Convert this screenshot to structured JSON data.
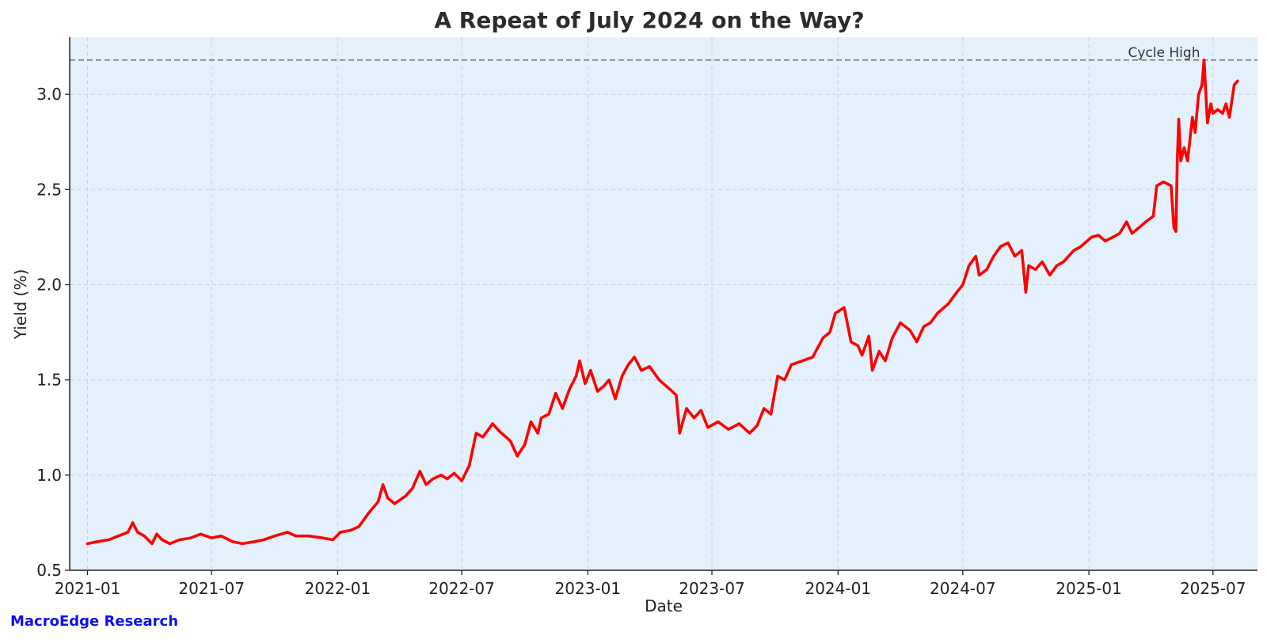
{
  "chart_data": {
    "type": "line",
    "title": "A Repeat of July 2024 on the Way?",
    "xlabel": "Date",
    "ylabel": "Yield (%)",
    "x_ticks": [
      "2021-01",
      "2021-07",
      "2022-01",
      "2022-07",
      "2023-01",
      "2023-07",
      "2024-01",
      "2024-07",
      "2025-01",
      "2025-07"
    ],
    "y_ticks": [
      "0.5",
      "1.0",
      "1.5",
      "2.0",
      "2.5",
      "3.0"
    ],
    "ylim": [
      0.5,
      3.3
    ],
    "xlim": [
      "2020-12-06",
      "2025-09-04"
    ],
    "grid": true,
    "background_color": "#e4f1fd",
    "series": [
      {
        "color": "#ff0000",
        "points": [
          [
            "2021-01-01",
            0.64
          ],
          [
            "2021-01-15",
            0.65
          ],
          [
            "2021-02-01",
            0.66
          ],
          [
            "2021-02-15",
            0.68
          ],
          [
            "2021-03-01",
            0.7
          ],
          [
            "2021-03-08",
            0.75
          ],
          [
            "2021-03-15",
            0.7
          ],
          [
            "2021-03-25",
            0.68
          ],
          [
            "2021-04-05",
            0.64
          ],
          [
            "2021-04-12",
            0.69
          ],
          [
            "2021-04-20",
            0.66
          ],
          [
            "2021-05-01",
            0.64
          ],
          [
            "2021-05-15",
            0.66
          ],
          [
            "2021-06-01",
            0.67
          ],
          [
            "2021-06-15",
            0.69
          ],
          [
            "2021-07-01",
            0.67
          ],
          [
            "2021-07-15",
            0.68
          ],
          [
            "2021-08-01",
            0.65
          ],
          [
            "2021-08-15",
            0.64
          ],
          [
            "2021-09-01",
            0.65
          ],
          [
            "2021-09-15",
            0.66
          ],
          [
            "2021-10-01",
            0.68
          ],
          [
            "2021-10-20",
            0.7
          ],
          [
            "2021-11-01",
            0.68
          ],
          [
            "2021-11-20",
            0.68
          ],
          [
            "2021-12-10",
            0.67
          ],
          [
            "2021-12-25",
            0.66
          ],
          [
            "2022-01-05",
            0.7
          ],
          [
            "2022-01-20",
            0.71
          ],
          [
            "2022-02-01",
            0.73
          ],
          [
            "2022-02-15",
            0.8
          ],
          [
            "2022-03-01",
            0.86
          ],
          [
            "2022-03-08",
            0.95
          ],
          [
            "2022-03-15",
            0.88
          ],
          [
            "2022-03-25",
            0.85
          ],
          [
            "2022-04-10",
            0.89
          ],
          [
            "2022-04-20",
            0.93
          ],
          [
            "2022-05-01",
            1.02
          ],
          [
            "2022-05-10",
            0.95
          ],
          [
            "2022-05-20",
            0.98
          ],
          [
            "2022-06-01",
            1.0
          ],
          [
            "2022-06-10",
            0.98
          ],
          [
            "2022-06-20",
            1.01
          ],
          [
            "2022-07-01",
            0.97
          ],
          [
            "2022-07-12",
            1.05
          ],
          [
            "2022-07-22",
            1.22
          ],
          [
            "2022-08-01",
            1.2
          ],
          [
            "2022-08-15",
            1.27
          ],
          [
            "2022-08-25",
            1.23
          ],
          [
            "2022-09-10",
            1.18
          ],
          [
            "2022-09-20",
            1.1
          ],
          [
            "2022-10-01",
            1.16
          ],
          [
            "2022-10-10",
            1.28
          ],
          [
            "2022-10-20",
            1.22
          ],
          [
            "2022-10-25",
            1.3
          ],
          [
            "2022-11-05",
            1.32
          ],
          [
            "2022-11-15",
            1.43
          ],
          [
            "2022-11-25",
            1.35
          ],
          [
            "2022-12-05",
            1.45
          ],
          [
            "2022-12-15",
            1.52
          ],
          [
            "2022-12-20",
            1.6
          ],
          [
            "2022-12-28",
            1.48
          ],
          [
            "2023-01-05",
            1.55
          ],
          [
            "2023-01-15",
            1.44
          ],
          [
            "2023-01-25",
            1.47
          ],
          [
            "2023-02-01",
            1.5
          ],
          [
            "2023-02-10",
            1.4
          ],
          [
            "2023-02-20",
            1.52
          ],
          [
            "2023-03-01",
            1.58
          ],
          [
            "2023-03-10",
            1.62
          ],
          [
            "2023-03-20",
            1.55
          ],
          [
            "2023-04-01",
            1.57
          ],
          [
            "2023-04-15",
            1.5
          ],
          [
            "2023-05-01",
            1.45
          ],
          [
            "2023-05-10",
            1.42
          ],
          [
            "2023-05-15",
            1.22
          ],
          [
            "2023-05-25",
            1.35
          ],
          [
            "2023-06-05",
            1.3
          ],
          [
            "2023-06-15",
            1.34
          ],
          [
            "2023-06-25",
            1.25
          ],
          [
            "2023-07-10",
            1.28
          ],
          [
            "2023-07-25",
            1.24
          ],
          [
            "2023-08-10",
            1.27
          ],
          [
            "2023-08-25",
            1.22
          ],
          [
            "2023-09-05",
            1.26
          ],
          [
            "2023-09-15",
            1.35
          ],
          [
            "2023-09-25",
            1.32
          ],
          [
            "2023-10-05",
            1.52
          ],
          [
            "2023-10-15",
            1.5
          ],
          [
            "2023-10-25",
            1.58
          ],
          [
            "2023-11-10",
            1.6
          ],
          [
            "2023-11-25",
            1.62
          ],
          [
            "2023-12-10",
            1.72
          ],
          [
            "2023-12-20",
            1.75
          ],
          [
            "2023-12-28",
            1.85
          ],
          [
            "2024-01-10",
            1.88
          ],
          [
            "2024-01-20",
            1.7
          ],
          [
            "2024-01-30",
            1.68
          ],
          [
            "2024-02-05",
            1.63
          ],
          [
            "2024-02-15",
            1.73
          ],
          [
            "2024-02-20",
            1.55
          ],
          [
            "2024-03-01",
            1.65
          ],
          [
            "2024-03-10",
            1.6
          ],
          [
            "2024-03-20",
            1.72
          ],
          [
            "2024-04-01",
            1.8
          ],
          [
            "2024-04-15",
            1.76
          ],
          [
            "2024-04-25",
            1.7
          ],
          [
            "2024-05-05",
            1.78
          ],
          [
            "2024-05-15",
            1.8
          ],
          [
            "2024-05-25",
            1.85
          ],
          [
            "2024-06-10",
            1.9
          ],
          [
            "2024-06-20",
            1.95
          ],
          [
            "2024-07-01",
            2.0
          ],
          [
            "2024-07-10",
            2.1
          ],
          [
            "2024-07-20",
            2.15
          ],
          [
            "2024-07-25",
            2.05
          ],
          [
            "2024-08-05",
            2.08
          ],
          [
            "2024-08-15",
            2.15
          ],
          [
            "2024-08-25",
            2.2
          ],
          [
            "2024-09-05",
            2.22
          ],
          [
            "2024-09-15",
            2.15
          ],
          [
            "2024-09-25",
            2.18
          ],
          [
            "2024-10-01",
            1.96
          ],
          [
            "2024-10-05",
            2.1
          ],
          [
            "2024-10-15",
            2.08
          ],
          [
            "2024-10-25",
            2.12
          ],
          [
            "2024-11-05",
            2.05
          ],
          [
            "2024-11-15",
            2.1
          ],
          [
            "2024-11-25",
            2.12
          ],
          [
            "2024-12-10",
            2.18
          ],
          [
            "2024-12-20",
            2.2
          ],
          [
            "2025-01-05",
            2.25
          ],
          [
            "2025-01-15",
            2.26
          ],
          [
            "2025-01-25",
            2.23
          ],
          [
            "2025-02-05",
            2.25
          ],
          [
            "2025-02-15",
            2.27
          ],
          [
            "2025-02-25",
            2.33
          ],
          [
            "2025-03-05",
            2.27
          ],
          [
            "2025-03-15",
            2.3
          ],
          [
            "2025-03-25",
            2.33
          ],
          [
            "2025-04-05",
            2.36
          ],
          [
            "2025-04-10",
            2.52
          ],
          [
            "2025-04-20",
            2.54
          ],
          [
            "2025-05-01",
            2.52
          ],
          [
            "2025-05-05",
            2.3
          ],
          [
            "2025-05-08",
            2.28
          ],
          [
            "2025-05-10",
            2.65
          ],
          [
            "2025-05-12",
            2.87
          ],
          [
            "2025-05-15",
            2.65
          ],
          [
            "2025-05-20",
            2.72
          ],
          [
            "2025-05-25",
            2.65
          ],
          [
            "2025-06-01",
            2.88
          ],
          [
            "2025-06-05",
            2.8
          ],
          [
            "2025-06-10",
            3.0
          ],
          [
            "2025-06-15",
            3.05
          ],
          [
            "2025-06-18",
            3.18
          ],
          [
            "2025-06-20",
            3.05
          ],
          [
            "2025-06-23",
            2.85
          ],
          [
            "2025-06-28",
            2.95
          ],
          [
            "2025-07-01",
            2.9
          ],
          [
            "2025-07-08",
            2.92
          ],
          [
            "2025-07-15",
            2.9
          ],
          [
            "2025-07-20",
            2.95
          ],
          [
            "2025-07-25",
            2.88
          ],
          [
            "2025-08-01",
            3.05
          ],
          [
            "2025-08-06",
            3.07
          ]
        ]
      }
    ],
    "reference_line": {
      "y": 3.18,
      "label": "Cycle High",
      "color": "#7a7a7a",
      "style": "dashed"
    },
    "footer": {
      "text": "MacroEdge Research",
      "color": "#1010ee"
    }
  }
}
